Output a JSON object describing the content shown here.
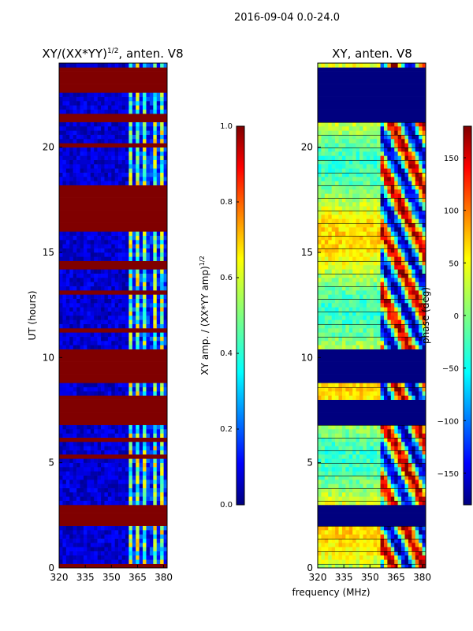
{
  "figure": {
    "suptitle": "2016-09-04 0.0-24.0",
    "shared_xlabel": "frequency (MHz)",
    "colors": {
      "saturated": "#800000",
      "background_low": "#00007f",
      "flagged_black": "#000000"
    }
  },
  "chart_data": [
    {
      "type": "heatmap",
      "id": "amp",
      "title": "XY/(XX*YY)",
      "title_sup": "1/2",
      "title_suffix": ", anten. V8",
      "xlabel": "",
      "ylabel": "UT (hours)",
      "xlim": [
        320,
        382
      ],
      "ylim": [
        0,
        24
      ],
      "xticks": [
        320,
        335,
        350,
        365,
        380
      ],
      "yticks": [
        0,
        5,
        10,
        15,
        20
      ],
      "colormap": "jet",
      "colorbar": {
        "label": "XY amp. / (XX*YY amp)",
        "label_sup": "1/2",
        "range": [
          0.0,
          1.0
        ],
        "ticks": [
          "0.0",
          "0.2",
          "0.4",
          "0.6",
          "0.8",
          "1.0"
        ]
      },
      "saturated_hour_bands": [
        [
          0.1,
          0.3
        ],
        [
          2.05,
          3.05
        ],
        [
          5.25,
          5.35
        ],
        [
          6.1,
          6.15
        ],
        [
          6.75,
          8.05
        ],
        [
          8.1,
          8.2
        ],
        [
          8.9,
          10.3
        ],
        [
          11.3,
          11.35
        ],
        [
          13.0,
          13.1
        ],
        [
          14.3,
          14.4
        ],
        [
          14.5,
          14.55
        ],
        [
          16.1,
          18.2
        ],
        [
          20.0,
          20.1
        ],
        [
          21.3,
          21.5
        ],
        [
          22.0,
          22.05
        ],
        [
          22.6,
          23.8
        ]
      ],
      "bright_channel_range_mhz": [
        360,
        382
      ]
    },
    {
      "type": "heatmap",
      "id": "phase",
      "title": "XY, anten. V8",
      "xlabel": "",
      "ylabel": "",
      "xlim": [
        320,
        382
      ],
      "ylim": [
        0,
        24
      ],
      "xticks": [
        320,
        335,
        350,
        365,
        380
      ],
      "yticks": [
        0,
        5,
        10,
        15,
        20
      ],
      "colormap": "jet",
      "colorbar": {
        "label": "phase (deg)",
        "range": [
          -180,
          180
        ],
        "ticks": [
          "-150",
          "-100",
          "-50",
          "0",
          "50",
          "100",
          "150"
        ]
      },
      "flagged_hour_bands": [
        [
          2.05,
          3.05
        ],
        [
          6.75,
          8.05
        ],
        [
          8.9,
          10.3
        ],
        [
          21.3,
          22.6
        ],
        [
          22.6,
          23.8
        ]
      ]
    }
  ]
}
